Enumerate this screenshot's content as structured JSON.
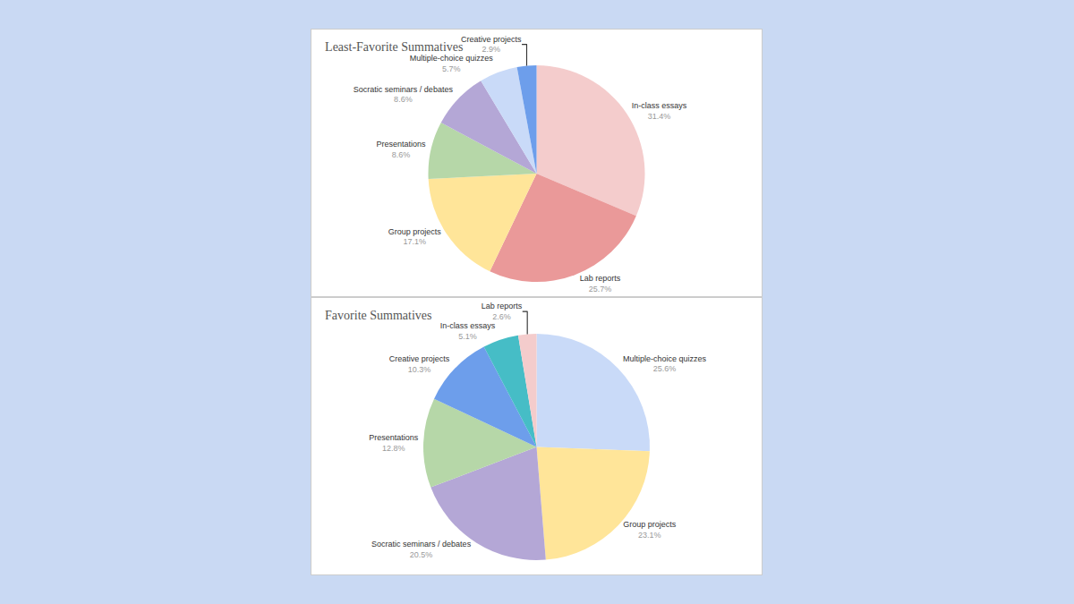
{
  "chart_data": [
    {
      "type": "pie",
      "title": "Least-Favorite Summatives",
      "categories": [
        "In-class essays",
        "Lab reports",
        "Group projects",
        "Presentations",
        "Socratic seminars / debates",
        "Multiple-choice quizzes",
        "Creative projects"
      ],
      "values": [
        31.4,
        25.7,
        17.1,
        8.6,
        8.6,
        5.7,
        2.9
      ],
      "value_labels": [
        "31.4%",
        "25.7%",
        "17.1%",
        "8.6%",
        "8.6%",
        "5.7%",
        "2.9%"
      ],
      "colors": [
        "#f4cccc",
        "#ea9999",
        "#ffe599",
        "#b6d7a8",
        "#b4a7d6",
        "#c9daf8",
        "#6d9eeb"
      ],
      "data_labels": true
    },
    {
      "type": "pie",
      "title": "Favorite Summatives",
      "categories": [
        "Multiple-choice quizzes",
        "Group projects",
        "Socratic seminars / debates",
        "Presentations",
        "Creative projects",
        "In-class essays",
        "Lab reports"
      ],
      "values": [
        25.6,
        23.1,
        20.5,
        12.8,
        10.3,
        5.1,
        2.6
      ],
      "value_labels": [
        "25.6%",
        "23.1%",
        "20.5%",
        "12.8%",
        "10.3%",
        "5.1%",
        "2.6%"
      ],
      "colors": [
        "#c9daf8",
        "#ffe599",
        "#b4a7d6",
        "#b6d7a8",
        "#6d9eeb",
        "#46bdc6",
        "#f4cccc"
      ],
      "data_labels": true
    }
  ]
}
